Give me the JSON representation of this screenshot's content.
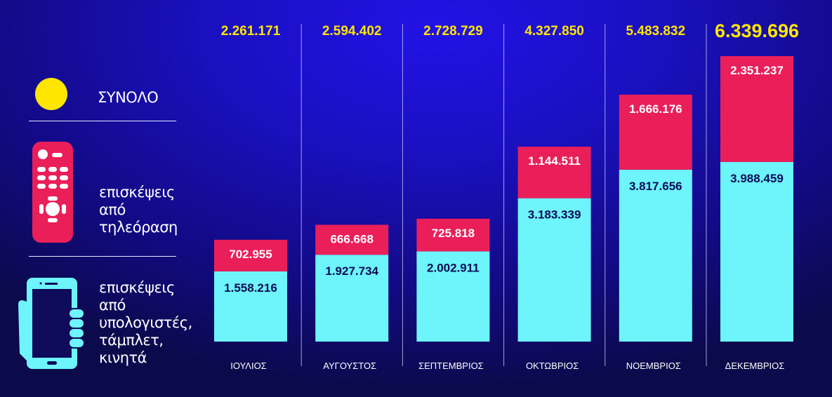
{
  "legend": {
    "total_label": "ΣΥΝΟΛΟ",
    "tv_label": [
      "επισκέψεις",
      "από",
      "τηλεόραση"
    ],
    "devices_label": [
      "επισκέψεις",
      "από",
      "υπολογιστές,",
      "τάμπλετ,",
      "κινητά"
    ]
  },
  "colors": {
    "total": "#ffe600",
    "tv": "#ea1f5a",
    "devices": "#6ef4fb",
    "value_text": "#0b0b55"
  },
  "chart_data": {
    "type": "bar",
    "stacked": true,
    "categories": [
      "ΙΟΥΛΙΟΣ",
      "ΑΥΓΟΥΣΤΟΣ",
      "ΣΕΠΤΕΜΒΡΙΟΣ",
      "ΟΚΤΩΒΡΙΟΣ",
      "ΝΟΕΜΒΡΙΟΣ",
      "ΔΕΚΕΜΒΡΙΟΣ"
    ],
    "series": [
      {
        "name": "επισκέψεις από υπολογιστές, τάμπλετ, κινητά",
        "values": [
          1558216,
          1927734,
          2002911,
          3183339,
          3817656,
          3988459
        ],
        "labels": [
          "1.558.216",
          "1.927.734",
          "2.002.911",
          "3.183.339",
          "3.817.656",
          "3.988.459"
        ]
      },
      {
        "name": "επισκέψεις από τηλεόραση",
        "values": [
          702955,
          666668,
          725818,
          1144511,
          1666176,
          2351237
        ],
        "labels": [
          "702.955",
          "666.668",
          "725.818",
          "1.144.511",
          "1.666.176",
          "2.351.237"
        ]
      }
    ],
    "totals": [
      2261171,
      2594402,
      2728729,
      4327850,
      5483832,
      6339696
    ],
    "total_labels": [
      "2.261.171",
      "2.594.402",
      "2.728.729",
      "4.327.850",
      "5.483.832",
      "6.339.696"
    ],
    "ylim": [
      0,
      6339696
    ],
    "title": "",
    "xlabel": "",
    "ylabel": "",
    "grid": false
  }
}
